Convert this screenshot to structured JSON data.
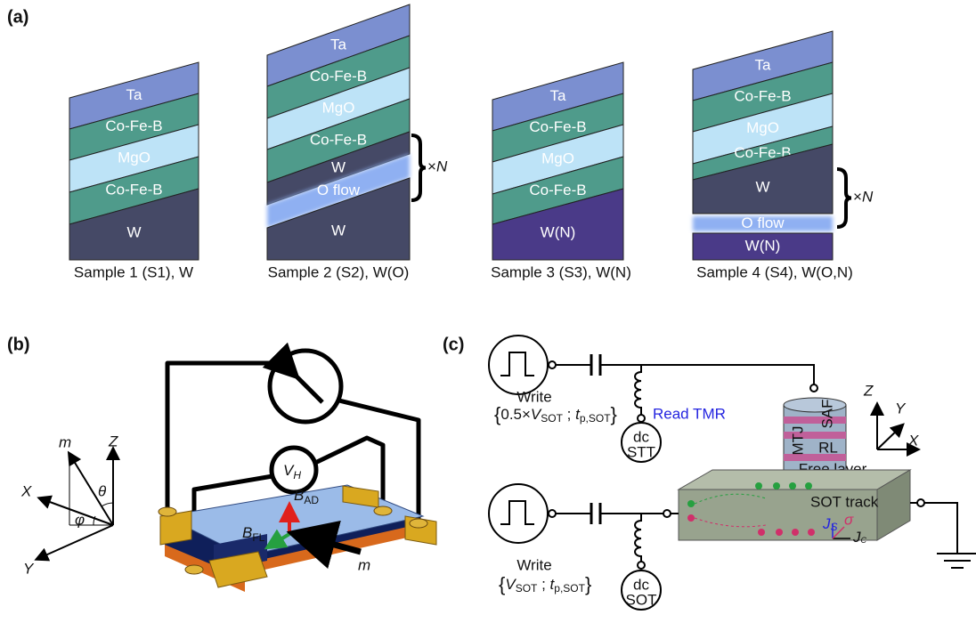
{
  "panel_a": {
    "label": "(a)",
    "samples": [
      {
        "layers": [
          {
            "name": "Ta",
            "color": "#7b8fd0"
          },
          {
            "name": "Co-Fe-B",
            "color": "#4f9b8b"
          },
          {
            "name": "MgO",
            "color": "#bde3f7"
          },
          {
            "name": "Co-Fe-B",
            "color": "#4f9b8b"
          },
          {
            "name": "W",
            "color": "#454966"
          }
        ],
        "caption": "Sample 1 (S1), W"
      },
      {
        "layers": [
          {
            "name": "Ta",
            "color": "#7b8fd0"
          },
          {
            "name": "Co-Fe-B",
            "color": "#4f9b8b"
          },
          {
            "name": "MgO",
            "color": "#bde3f7"
          },
          {
            "name": "Co-Fe-B",
            "color": "#4f9b8b"
          },
          {
            "name": "W",
            "color": "#454966"
          },
          {
            "name": "O flow",
            "color": "#8fb0f2"
          },
          {
            "name": "W",
            "color": "#454966"
          }
        ],
        "caption": "Sample 2 (S2), W(O)",
        "repeat": {
          "times": "×",
          "var": "N"
        }
      },
      {
        "layers": [
          {
            "name": "Ta",
            "color": "#7b8fd0"
          },
          {
            "name": "Co-Fe-B",
            "color": "#4f9b8b"
          },
          {
            "name": "MgO",
            "color": "#bde3f7"
          },
          {
            "name": "Co-Fe-B",
            "color": "#4f9b8b"
          },
          {
            "name": "W(N)",
            "color": "#4a3a88"
          }
        ],
        "caption": "Sample 3 (S3), W(N)"
      },
      {
        "layers": [
          {
            "name": "Ta",
            "color": "#7b8fd0"
          },
          {
            "name": "Co-Fe-B",
            "color": "#4f9b8b"
          },
          {
            "name": "MgO",
            "color": "#bde3f7"
          },
          {
            "name": "Co-Fe-B",
            "color": "#4f9b8b"
          },
          {
            "name": "W",
            "color": "#454966"
          },
          {
            "name": "O flow",
            "color": "#8fb0f2"
          },
          {
            "name": "W(N)",
            "color": "#4a3a88"
          }
        ],
        "caption": "Sample 4 (S4), W(O,N)",
        "repeat": {
          "times": "×",
          "var": "N"
        }
      }
    ]
  },
  "panel_b": {
    "label": "(b)",
    "axes": {
      "m": "m",
      "z": "Z",
      "x": "X",
      "y": "Y",
      "theta": "θ",
      "phi": "φ"
    },
    "hall_voltage": {
      "symbol": "V",
      "sub": "H"
    },
    "damping_like": {
      "symbol": "B",
      "sub": "AD"
    },
    "field_like": {
      "symbol": "B",
      "sub": "FL"
    },
    "magnetization": "m"
  },
  "panel_c": {
    "label": "(c)",
    "write_top": {
      "label": "Write",
      "open": "{",
      "factor": "0.5×",
      "v": "V",
      "v_sub": "SOT",
      "sep": " ; ",
      "t": "t",
      "t_sub": "p,SOT",
      "close": "}"
    },
    "write_bottom": {
      "label": "Write",
      "open": "{",
      "v": "V",
      "v_sub": "SOT",
      "sep": " ; ",
      "t": "t",
      "t_sub": "p,SOT",
      "close": "}"
    },
    "read": "Read TMR",
    "dc_top": {
      "label": "dc",
      "sub": "STT"
    },
    "dc_bottom": {
      "label": "dc",
      "sub": "SOT"
    },
    "mtj": "MTJ",
    "saf": "SAF",
    "rl": "RL",
    "free_layer": "Free layer",
    "sot_track": "SOT track",
    "js": {
      "symbol": "J",
      "sub": "S"
    },
    "jc": {
      "symbol": "J",
      "sub": "C"
    },
    "sigma": "σ",
    "axes": {
      "z": "Z",
      "y": "Y",
      "x": "X"
    }
  }
}
